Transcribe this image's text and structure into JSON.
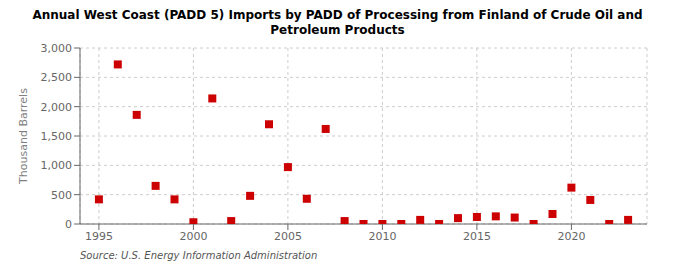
{
  "chart_data": {
    "type": "scatter",
    "title": "Annual West Coast (PADD 5) Imports by PADD of Processing from Finland of Crude Oil and\nPetroleum Products",
    "y_label": "Thousand Barrels",
    "annotations": [
      "Source: U.S. Energy Information Administration"
    ],
    "x": [
      1995,
      1996,
      1997,
      1998,
      1999,
      2000,
      2001,
      2002,
      2003,
      2004,
      2005,
      2006,
      2007,
      2008,
      2009,
      2010,
      2011,
      2012,
      2013,
      2014,
      2015,
      2016,
      2017,
      2018,
      2019,
      2020,
      2021,
      2022,
      2023
    ],
    "values": [
      420,
      2720,
      1860,
      650,
      420,
      30,
      2140,
      50,
      480,
      1700,
      970,
      430,
      1620,
      50,
      0,
      0,
      0,
      70,
      0,
      100,
      120,
      130,
      110,
      0,
      170,
      620,
      410,
      0,
      70
    ],
    "color": "#cc0000",
    "marker": "square",
    "xlim": [
      1994,
      2024
    ],
    "xticks": [
      1995,
      2000,
      2005,
      2010,
      2015,
      2020
    ],
    "ylim": [
      0,
      3000
    ],
    "yticks": [
      0,
      500,
      {
        "value": 1000,
        "label": "1,000"
      },
      {
        "value": 1500,
        "label": "1,500"
      },
      {
        "value": 2000,
        "label": "2,000"
      },
      {
        "value": 2500,
        "label": "2,500"
      },
      {
        "value": 3000,
        "label": "3,000"
      }
    ],
    "grid": true
  }
}
